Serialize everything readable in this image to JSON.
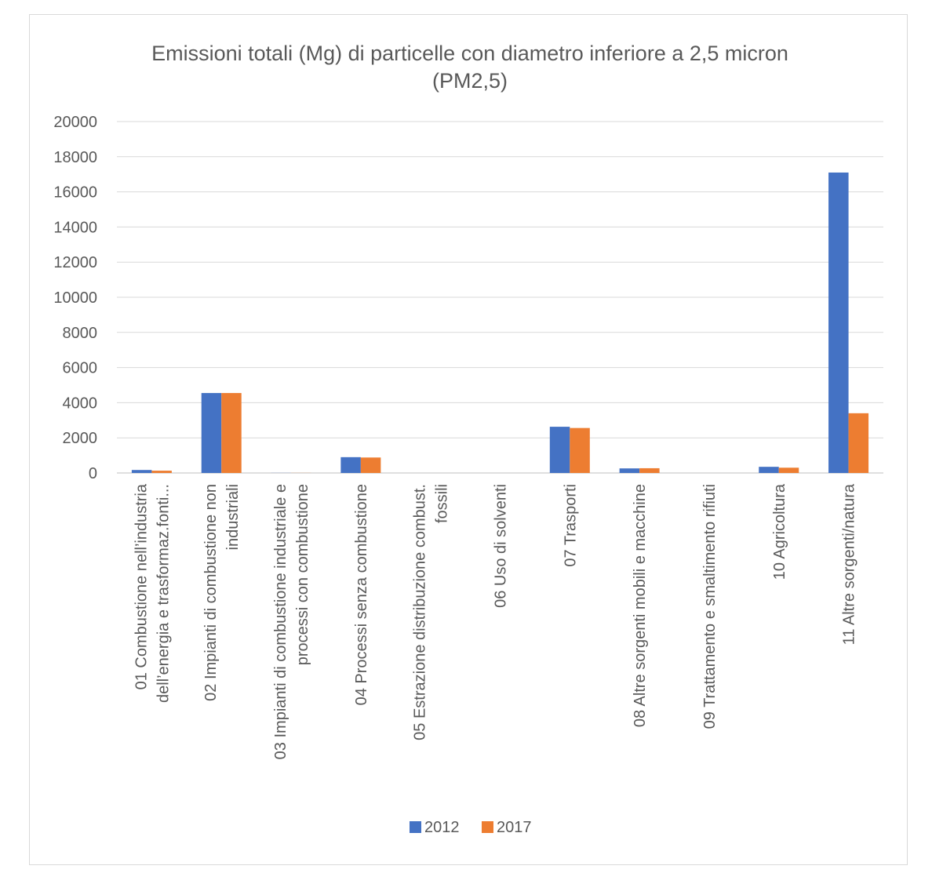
{
  "chart_data": {
    "type": "bar",
    "title_lines": [
      "Emissioni totali (Mg) di particelle con diametro inferiore a 2,5 micron",
      "(PM2,5)"
    ],
    "categories": [
      [
        "01 Combustione nell’industria",
        "dell’energia e trasformaz.fonti..."
      ],
      [
        "02 Impianti di combustione non",
        "industriali"
      ],
      [
        "03 Impianti di combustione industriale e",
        "processi con combustione"
      ],
      [
        "04 Processi senza combustione"
      ],
      [
        "05 Estrazione distribuzione combust.",
        "fossili"
      ],
      [
        "06 Uso di solventi"
      ],
      [
        "07 Trasporti"
      ],
      [
        "08 Altre sorgenti mobili e macchine"
      ],
      [
        "09 Trattamento e smaltimento rifiuti"
      ],
      [
        "10 Agricoltura"
      ],
      [
        "11 Altre sorgenti/natura"
      ]
    ],
    "series": [
      {
        "name": "2012",
        "color": "#4472C4",
        "values": [
          170,
          4550,
          5,
          900,
          0,
          0,
          2630,
          260,
          0,
          350,
          17100
        ]
      },
      {
        "name": "2017",
        "color": "#ED7D31",
        "values": [
          130,
          4550,
          5,
          880,
          0,
          0,
          2560,
          270,
          0,
          300,
          3400
        ]
      }
    ],
    "ylim": [
      0,
      20000
    ],
    "yticks": [
      "0",
      "2000",
      "4000",
      "6000",
      "8000",
      "10000",
      "12000",
      "14000",
      "16000",
      "18000",
      "20000"
    ],
    "grid": true,
    "legend_position": "bottom"
  }
}
